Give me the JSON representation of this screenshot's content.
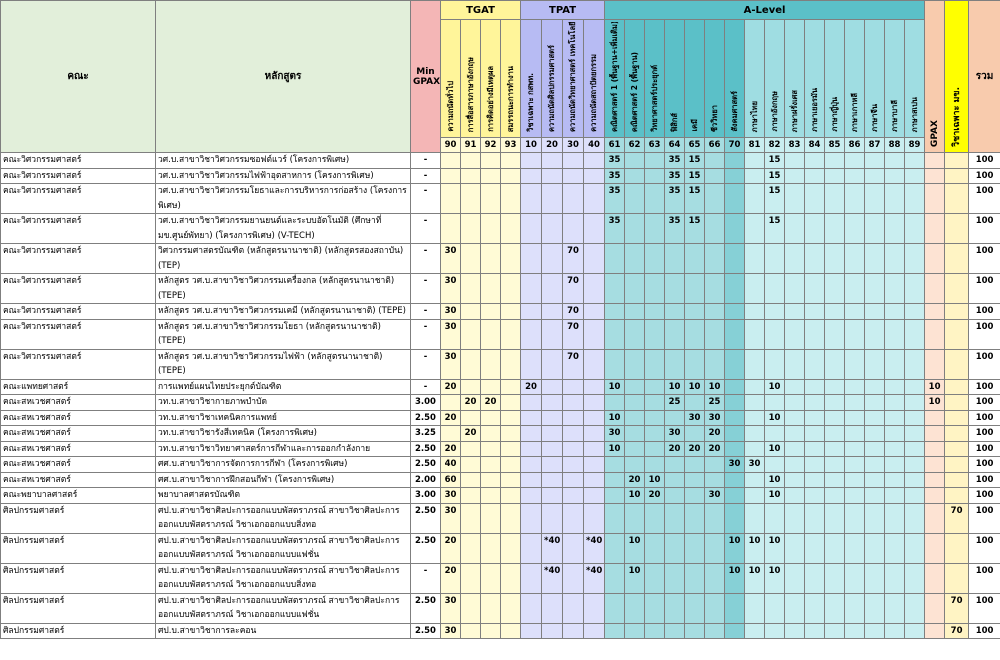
{
  "headers": {
    "faculty": "คณะ",
    "program": "หลักสูตร",
    "min_gpax": "Min GPAX",
    "groups": [
      {
        "name": "TGAT",
        "columns": [
          {
            "code": 90,
            "name": "ความถนัดทั่วไป"
          },
          {
            "code": 91,
            "name": "การสื่อสารภาษาอังกฤษ"
          },
          {
            "code": 92,
            "name": "การคิดอย่างมีเหตุผล"
          },
          {
            "code": 93,
            "name": "สมรรถนะการทำงาน"
          }
        ]
      },
      {
        "name": "TPAT",
        "columns": [
          {
            "code": 10,
            "name": "วิชาเฉพาะ กสพท."
          },
          {
            "code": 20,
            "name": "ความถนัดศิลปกรรมศาสตร์"
          },
          {
            "code": 30,
            "name": "ความถนัดวิทยาศาสตร์ เทคโนโลยี วิศวฯ"
          },
          {
            "code": 40,
            "name": "ความถนัดสถาปัตยกรรม"
          }
        ]
      },
      {
        "name": "A-Level",
        "columns": [
          {
            "code": 61,
            "name": "คณิตศาสตร์ 1 (พื้นฐาน+เพิ่มเติม)"
          },
          {
            "code": 62,
            "name": "คณิตศาสตร์ 2 (พื้นฐาน)"
          },
          {
            "code": 63,
            "name": "วิทยาศาสตร์ประยุกต์"
          },
          {
            "code": 64,
            "name": "ฟิสิกส์"
          },
          {
            "code": 65,
            "name": "เคมี"
          },
          {
            "code": 66,
            "name": "ชีววิทยา"
          },
          {
            "code": 70,
            "name": "สังคมศาสตร์"
          },
          {
            "code": 81,
            "name": "ภาษาไทย"
          },
          {
            "code": 82,
            "name": "ภาษาอังกฤษ"
          },
          {
            "code": 83,
            "name": "ภาษาฝรั่งเศส"
          },
          {
            "code": 84,
            "name": "ภาษาเยอรมัน"
          },
          {
            "code": 85,
            "name": "ภาษาญี่ปุ่น"
          },
          {
            "code": 86,
            "name": "ภาษาเกาหลี"
          },
          {
            "code": 87,
            "name": "ภาษาจีน"
          },
          {
            "code": 88,
            "name": "ภาษาบาลี"
          },
          {
            "code": 89,
            "name": "ภาษาสเปน"
          }
        ]
      }
    ],
    "gpax": "GPAX",
    "special": "วิชาเฉพาะ มข.",
    "total": "รวม"
  },
  "rows": [
    {
      "faculty": "คณะวิศวกรรมศาสตร์",
      "program": "วศ.บ.สาขาวิชาวิศวกรรมซอฟต์แวร์ (โครงการพิเศษ)",
      "min_gpax": "-",
      "scores": [
        null,
        null,
        null,
        null,
        null,
        null,
        null,
        null,
        35,
        null,
        null,
        35,
        15,
        null,
        null,
        null,
        15,
        null,
        null,
        null,
        null,
        null,
        null,
        null
      ],
      "gpax": null,
      "special": null,
      "total": 100
    },
    {
      "faculty": "คณะวิศวกรรมศาสตร์",
      "program": "วศ.บ.สาขาวิชาวิศวกรรมไฟฟ้าอุตสาหการ (โครงการพิเศษ)",
      "min_gpax": "-",
      "scores": [
        null,
        null,
        null,
        null,
        null,
        null,
        null,
        null,
        35,
        null,
        null,
        35,
        15,
        null,
        null,
        null,
        15,
        null,
        null,
        null,
        null,
        null,
        null,
        null
      ],
      "gpax": null,
      "special": null,
      "total": 100
    },
    {
      "faculty": "คณะวิศวกรรมศาสตร์",
      "program": "วศ.บ.สาขาวิชาวิศวกรรมโยธาและการบริหารการก่อสร้าง (โครงการพิเศษ)",
      "min_gpax": "-",
      "scores": [
        null,
        null,
        null,
        null,
        null,
        null,
        null,
        null,
        35,
        null,
        null,
        35,
        15,
        null,
        null,
        null,
        15,
        null,
        null,
        null,
        null,
        null,
        null,
        null
      ],
      "gpax": null,
      "special": null,
      "total": 100
    },
    {
      "faculty": "คณะวิศวกรรมศาสตร์",
      "program": "วศ.บ.สาขาวิชาวิศวกรรมยานยนต์และระบบอัตโนมัติ (ศึกษาที่ มข.ศูนย์พัทยา) (โครงการพิเศษ) (V-TECH)",
      "min_gpax": "-",
      "scores": [
        null,
        null,
        null,
        null,
        null,
        null,
        null,
        null,
        35,
        null,
        null,
        35,
        15,
        null,
        null,
        null,
        15,
        null,
        null,
        null,
        null,
        null,
        null,
        null
      ],
      "gpax": null,
      "special": null,
      "total": 100
    },
    {
      "faculty": "คณะวิศวกรรมศาสตร์",
      "program": "วิศวกรรมศาสตรบัณฑิต (หลักสูตรนานาชาติ) (หลักสูตรสองสถาบัน) (TEP)",
      "min_gpax": "-",
      "scores": [
        30,
        null,
        null,
        null,
        null,
        null,
        70,
        null,
        null,
        null,
        null,
        null,
        null,
        null,
        null,
        null,
        null,
        null,
        null,
        null,
        null,
        null,
        null,
        null
      ],
      "gpax": null,
      "special": null,
      "total": 100
    },
    {
      "faculty": "คณะวิศวกรรมศาสตร์",
      "program": "หลักสูตร วศ.บ.สาขาวิชาวิศวกรรมเครื่องกล (หลักสูตรนานาชาติ) (TEPE)",
      "min_gpax": "-",
      "scores": [
        30,
        null,
        null,
        null,
        null,
        null,
        70,
        null,
        null,
        null,
        null,
        null,
        null,
        null,
        null,
        null,
        null,
        null,
        null,
        null,
        null,
        null,
        null,
        null
      ],
      "gpax": null,
      "special": null,
      "total": 100
    },
    {
      "faculty": "คณะวิศวกรรมศาสตร์",
      "program": "หลักสูตร วศ.บ.สาขาวิชาวิศวกรรมเคมี (หลักสูตรนานาชาติ) (TEPE)",
      "min_gpax": "-",
      "scores": [
        30,
        null,
        null,
        null,
        null,
        null,
        70,
        null,
        null,
        null,
        null,
        null,
        null,
        null,
        null,
        null,
        null,
        null,
        null,
        null,
        null,
        null,
        null,
        null
      ],
      "gpax": null,
      "special": null,
      "total": 100
    },
    {
      "faculty": "คณะวิศวกรรมศาสตร์",
      "program": "หลักสูตร วศ.บ.สาขาวิชาวิศวกรรมโยธา (หลักสูตรนานาชาติ) (TEPE)",
      "min_gpax": "-",
      "scores": [
        30,
        null,
        null,
        null,
        null,
        null,
        70,
        null,
        null,
        null,
        null,
        null,
        null,
        null,
        null,
        null,
        null,
        null,
        null,
        null,
        null,
        null,
        null,
        null
      ],
      "gpax": null,
      "special": null,
      "total": 100
    },
    {
      "faculty": "คณะวิศวกรรมศาสตร์",
      "program": "หลักสูตร วศ.บ.สาขาวิชาวิศวกรรมไฟฟ้า (หลักสูตรนานาชาติ) (TEPE)",
      "min_gpax": "-",
      "scores": [
        30,
        null,
        null,
        null,
        null,
        null,
        70,
        null,
        null,
        null,
        null,
        null,
        null,
        null,
        null,
        null,
        null,
        null,
        null,
        null,
        null,
        null,
        null,
        null
      ],
      "gpax": null,
      "special": null,
      "total": 100
    },
    {
      "faculty": "คณะแพทยศาสตร์",
      "program": "การแพทย์แผนไทยประยุกต์บัณฑิต",
      "min_gpax": "-",
      "scores": [
        20,
        null,
        null,
        null,
        20,
        null,
        null,
        null,
        10,
        null,
        null,
        10,
        10,
        10,
        null,
        null,
        10,
        null,
        null,
        null,
        null,
        null,
        null,
        null
      ],
      "gpax": 10,
      "special": null,
      "total": 100
    },
    {
      "faculty": "คณะสหเวชศาสตร์",
      "program": "วท.บ.สาขาวิชากายภาพบำบัด",
      "min_gpax": "3.00",
      "scores": [
        null,
        20,
        20,
        null,
        null,
        null,
        null,
        null,
        null,
        null,
        null,
        25,
        null,
        25,
        null,
        null,
        null,
        null,
        null,
        null,
        null,
        null,
        null,
        null
      ],
      "gpax": 10,
      "special": null,
      "total": 100
    },
    {
      "faculty": "คณะสหเวชศาสตร์",
      "program": "วท.บ.สาขาวิชาเทคนิคการแพทย์",
      "min_gpax": "2.50",
      "scores": [
        20,
        null,
        null,
        null,
        null,
        null,
        null,
        null,
        10,
        null,
        null,
        null,
        30,
        30,
        null,
        null,
        10,
        null,
        null,
        null,
        null,
        null,
        null,
        null
      ],
      "gpax": null,
      "special": null,
      "total": 100
    },
    {
      "faculty": "คณะสหเวชศาสตร์",
      "program": "วท.บ.สาขาวิชารังสีเทคนิค (โครงการพิเศษ)",
      "min_gpax": "3.25",
      "scores": [
        null,
        20,
        null,
        null,
        null,
        null,
        null,
        null,
        30,
        null,
        null,
        30,
        null,
        20,
        null,
        null,
        null,
        null,
        null,
        null,
        null,
        null,
        null,
        null
      ],
      "gpax": null,
      "special": null,
      "total": 100
    },
    {
      "faculty": "คณะสหเวชศาสตร์",
      "program": "วท.บ.สาขาวิชาวิทยาศาสตร์การกีฬาและการออกกำลังกาย",
      "min_gpax": "2.50",
      "scores": [
        20,
        null,
        null,
        null,
        null,
        null,
        null,
        null,
        10,
        null,
        null,
        20,
        20,
        20,
        null,
        null,
        10,
        null,
        null,
        null,
        null,
        null,
        null,
        null
      ],
      "gpax": null,
      "special": null,
      "total": 100
    },
    {
      "faculty": "คณะสหเวชศาสตร์",
      "program": "ศศ.บ.สาขาวิชาการจัดการการกีฬา (โครงการพิเศษ)",
      "min_gpax": "2.50",
      "scores": [
        40,
        null,
        null,
        null,
        null,
        null,
        null,
        null,
        null,
        null,
        null,
        null,
        null,
        null,
        30,
        30,
        null,
        null,
        null,
        null,
        null,
        null,
        null,
        null
      ],
      "gpax": null,
      "special": null,
      "total": 100
    },
    {
      "faculty": "คณะสหเวชศาสตร์",
      "program": "ศศ.บ.สาขาวิชาการฝึกสอนกีฬา (โครงการพิเศษ)",
      "min_gpax": "2.00",
      "scores": [
        60,
        null,
        null,
        null,
        null,
        null,
        null,
        null,
        null,
        20,
        10,
        null,
        null,
        null,
        null,
        null,
        10,
        null,
        null,
        null,
        null,
        null,
        null,
        null
      ],
      "gpax": null,
      "special": null,
      "total": 100
    },
    {
      "faculty": "คณะพยาบาลศาสตร์",
      "program": "พยาบาลศาสตรบัณฑิต",
      "min_gpax": "3.00",
      "scores": [
        30,
        null,
        null,
        null,
        null,
        null,
        null,
        null,
        null,
        10,
        20,
        null,
        null,
        30,
        null,
        null,
        10,
        null,
        null,
        null,
        null,
        null,
        null,
        null
      ],
      "gpax": null,
      "special": null,
      "total": 100
    },
    {
      "faculty": "ศิลปกรรมศาสตร์",
      "program": "ศป.บ.สาขาวิชาศิลปะการออกแบบพัสตราภรณ์ สาขาวิชาศิลปะการออกแบบพัสตราภรณ์ วิชาเอกออกแบบสิ่งทอ",
      "min_gpax": "2.50",
      "scores": [
        30,
        null,
        null,
        null,
        null,
        null,
        null,
        null,
        null,
        null,
        null,
        null,
        null,
        null,
        null,
        null,
        null,
        null,
        null,
        null,
        null,
        null,
        null,
        null
      ],
      "gpax": null,
      "special": 70,
      "total": 100
    },
    {
      "faculty": "ศิลปกรรมศาสตร์",
      "program": "ศป.บ.สาขาวิชาศิลปะการออกแบบพัสตราภรณ์ สาขาวิชาศิลปะการออกแบบพัสตราภรณ์ วิชาเอกออกแบบแฟชั่น",
      "min_gpax": "2.50",
      "scores": [
        20,
        null,
        null,
        null,
        null,
        "*40",
        null,
        "*40",
        null,
        10,
        null,
        null,
        null,
        null,
        10,
        10,
        10,
        null,
        null,
        null,
        null,
        null,
        null,
        null
      ],
      "gpax": null,
      "special": null,
      "total": 100
    },
    {
      "faculty": "ศิลปกรรมศาสตร์",
      "program": "ศป.บ.สาขาวิชาศิลปะการออกแบบพัสตราภรณ์ สาขาวิชาศิลปะการออกแบบพัสตราภรณ์ วิชาเอกออกแบบสิ่งทอ",
      "min_gpax": "-",
      "scores": [
        20,
        null,
        null,
        null,
        null,
        "*40",
        null,
        "*40",
        null,
        10,
        null,
        null,
        null,
        null,
        10,
        10,
        10,
        null,
        null,
        null,
        null,
        null,
        null,
        null
      ],
      "gpax": null,
      "special": null,
      "total": 100
    },
    {
      "faculty": "ศิลปกรรมศาสตร์",
      "program": "ศป.บ.สาขาวิชาศิลปะการออกแบบพัสตราภรณ์ สาขาวิชาศิลปะการออกแบบพัสตราภรณ์ วิชาเอกออกแบบแฟชั่น",
      "min_gpax": "2.50",
      "scores": [
        30,
        null,
        null,
        null,
        null,
        null,
        null,
        null,
        null,
        null,
        null,
        null,
        null,
        null,
        null,
        null,
        null,
        null,
        null,
        null,
        null,
        null,
        null,
        null
      ],
      "gpax": null,
      "special": 70,
      "total": 100
    },
    {
      "faculty": "ศิลปกรรมศาสตร์",
      "program": "ศป.บ.สาขาวิชาการละคอน",
      "min_gpax": "2.50",
      "scores": [
        30,
        null,
        null,
        null,
        null,
        null,
        null,
        null,
        null,
        null,
        null,
        null,
        null,
        null,
        null,
        null,
        null,
        null,
        null,
        null,
        null,
        null,
        null,
        null
      ],
      "gpax": null,
      "special": 70,
      "total": 100
    }
  ]
}
